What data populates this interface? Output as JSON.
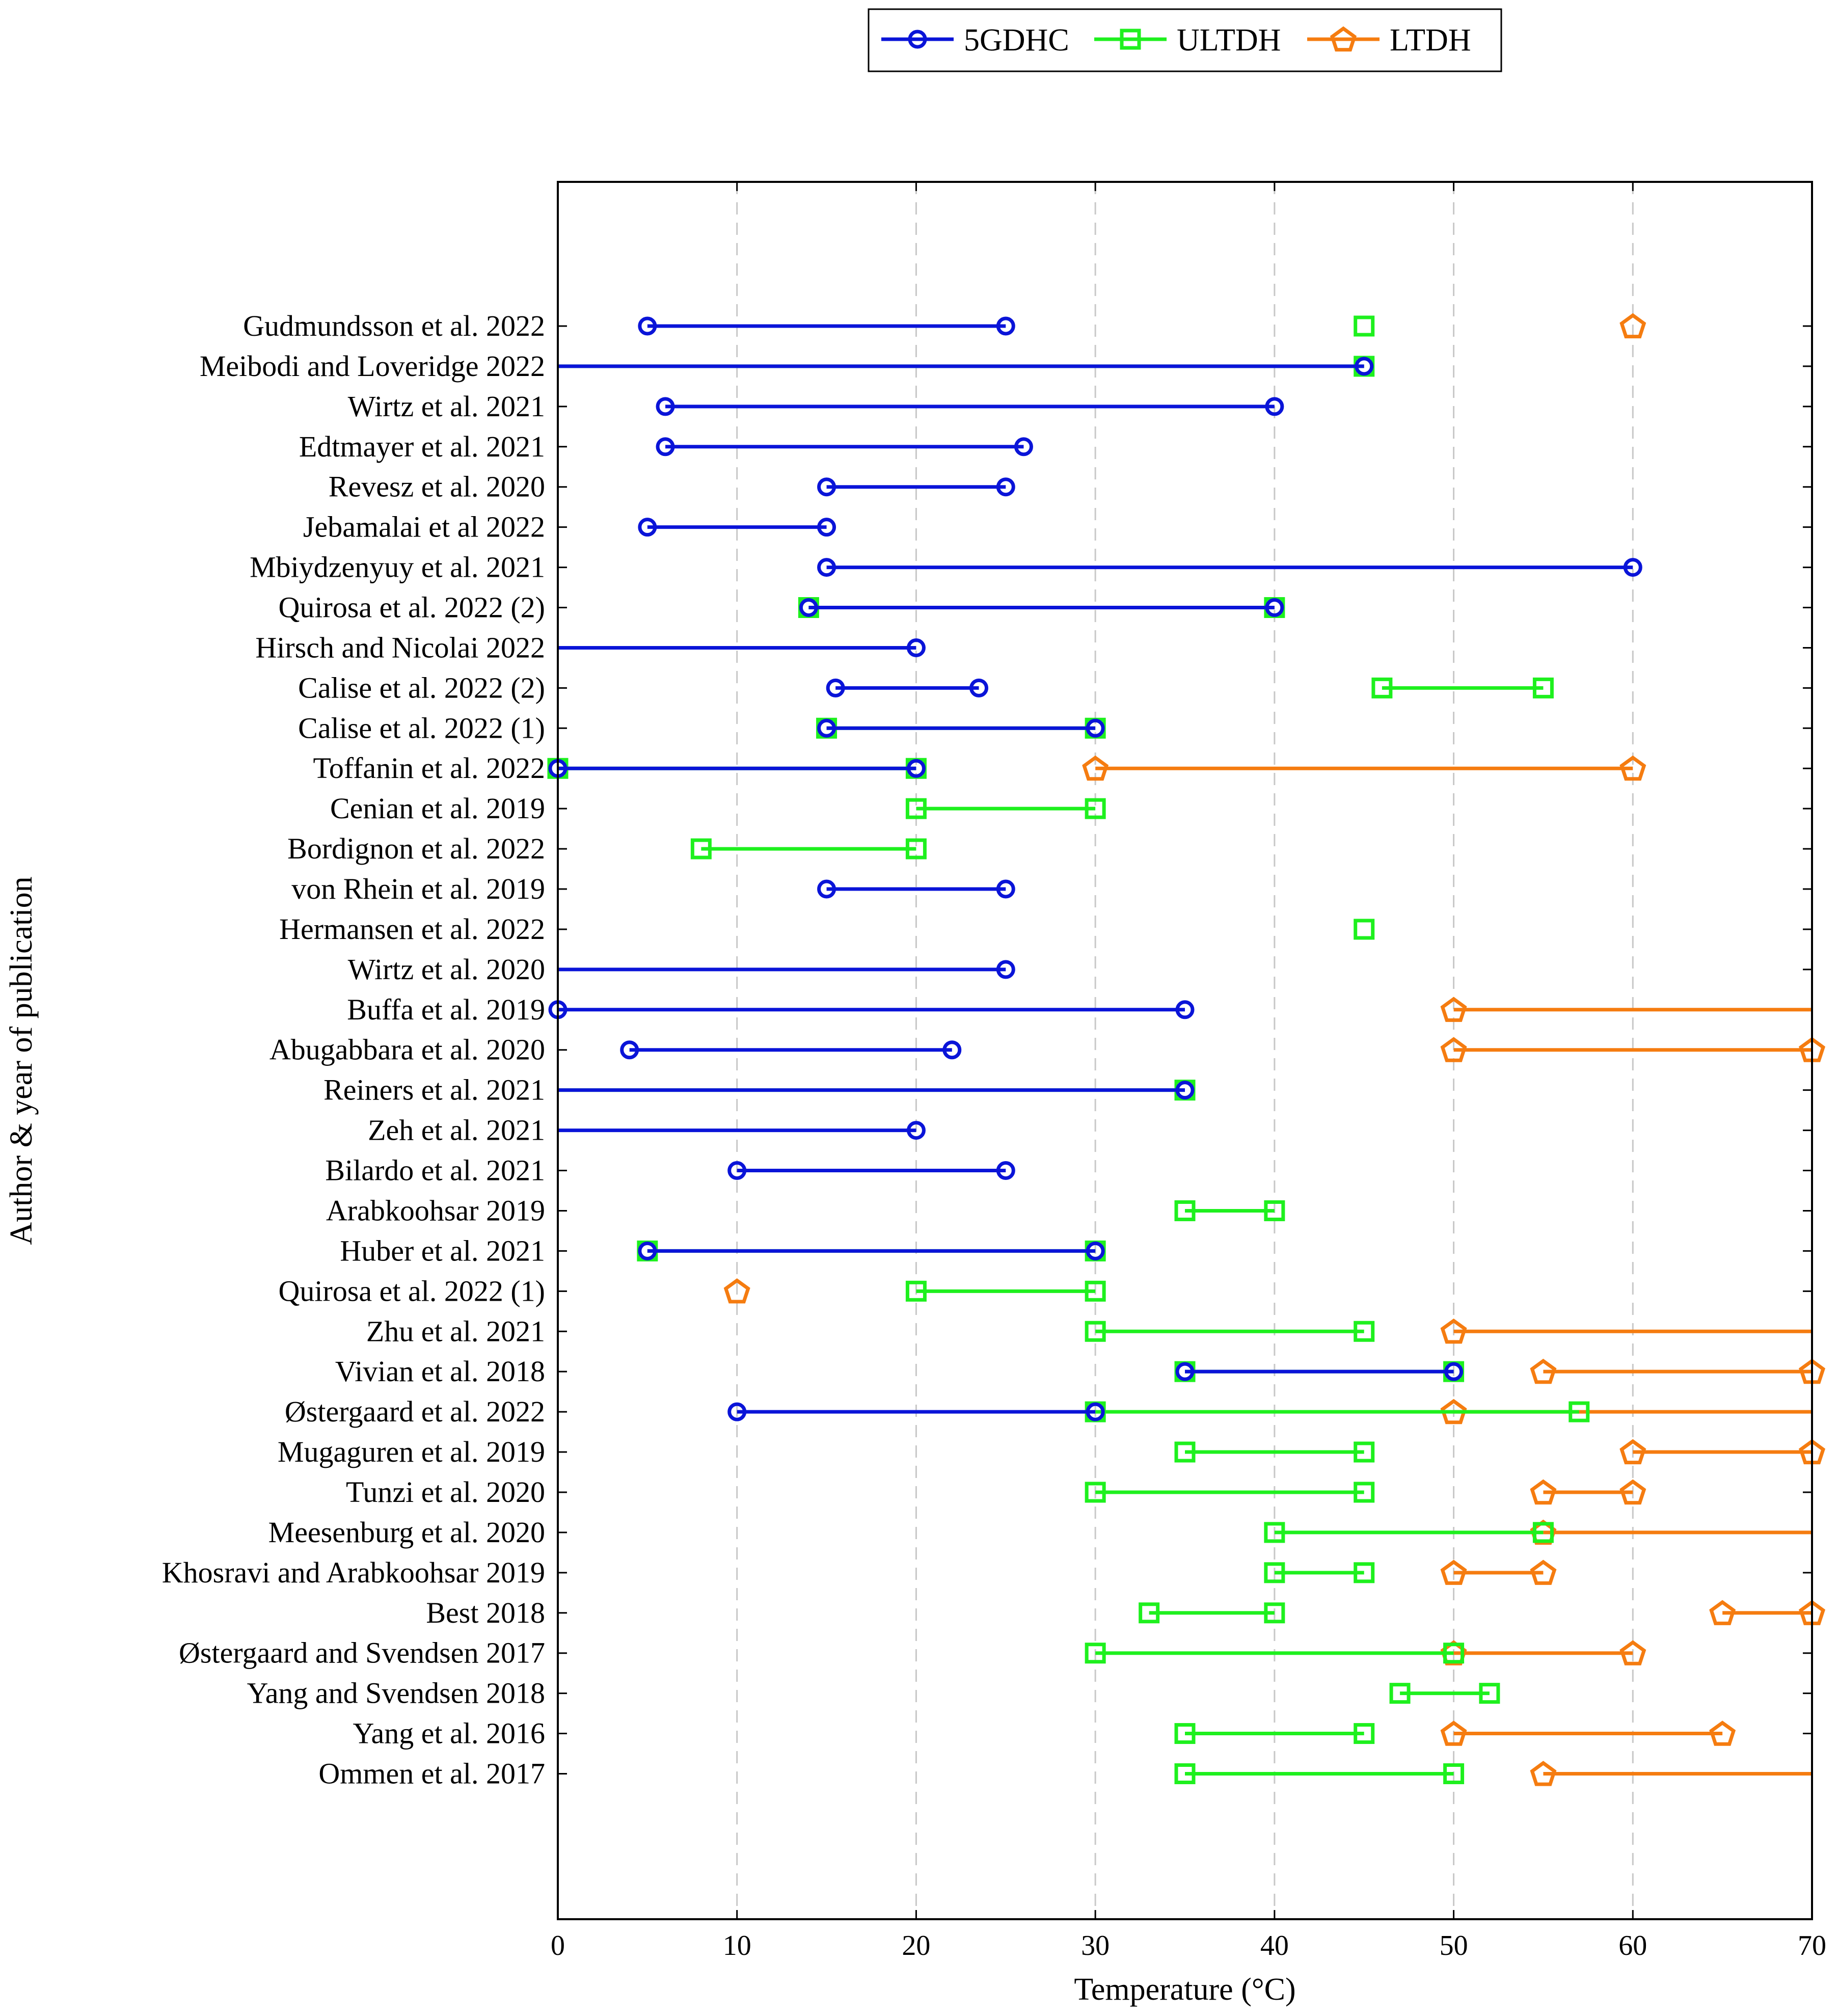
{
  "chart_data": {
    "type": "range-dumbbell",
    "title": "",
    "xlabel": "Temperature (°C)",
    "ylabel": "Author & year of publication",
    "xlim": [
      0,
      70
    ],
    "xticks": [
      0,
      10,
      20,
      30,
      40,
      50,
      60,
      70
    ],
    "grid": "vertical dashed",
    "legend_position": "top-center",
    "colors": {
      "5GDHC": "#0a14d8",
      "ULTDH": "#1ef01e",
      "LTDH": "#f57c10"
    },
    "series": [
      {
        "name": "5GDHC",
        "marker": "circle"
      },
      {
        "name": "ULTDH",
        "marker": "square"
      },
      {
        "name": "LTDH",
        "marker": "pentagon"
      }
    ],
    "categories": [
      "Gudmundsson et al. 2022",
      "Meibodi and Loveridge 2022",
      "Wirtz et al. 2021",
      "Edtmayer et al. 2021",
      "Revesz et al. 2020",
      "Jebamalai et al 2022",
      "Mbiydzenyuy et al. 2021",
      "Quirosa et al. 2022 (2)",
      "Hirsch and Nicolai 2022",
      "Calise et al. 2022 (2)",
      "Calise et al. 2022 (1)",
      "Toffanin et al. 2022",
      "Cenian et al. 2019",
      "Bordignon et al. 2022",
      "von Rhein et al. 2019",
      "Hermansen et al. 2022",
      "Wirtz et al. 2020",
      "Buffa et al. 2019",
      "Abugabbara et al. 2020",
      "Reiners et al. 2021",
      "Zeh et al. 2021",
      "Bilardo et al. 2021",
      "Arabkoohsar 2019",
      "Huber et al. 2021",
      "Quirosa et al. 2022 (1)",
      "Zhu et al. 2021",
      "Vivian et al. 2018",
      "Østergaard et al. 2022",
      "Mugaguren et al. 2019",
      "Tunzi et al. 2020",
      "Meesenburg et al. 2020",
      "Khosravi and Arabkoohsar 2019",
      "Best 2018",
      "Østergaard and Svendsen 2017",
      "Yang and Svendsen 2018",
      "Yang et al. 2016",
      "Ommen et al. 2017"
    ],
    "rows": [
      {
        "5GDHC": [
          5,
          25
        ],
        "ULTDH": [
          45
        ],
        "LTDH": [
          60
        ]
      },
      {
        "5GDHC": [
          null,
          45
        ],
        "ULTDH": [
          null,
          45
        ],
        "LTDH": null
      },
      {
        "5GDHC": [
          6,
          40
        ],
        "ULTDH": null,
        "LTDH": null
      },
      {
        "5GDHC": [
          6,
          26
        ],
        "ULTDH": null,
        "LTDH": null
      },
      {
        "5GDHC": [
          15,
          25
        ],
        "ULTDH": null,
        "LTDH": null
      },
      {
        "5GDHC": [
          5,
          15
        ],
        "ULTDH": null,
        "LTDH": null
      },
      {
        "5GDHC": [
          15,
          60
        ],
        "ULTDH": null,
        "LTDH": null
      },
      {
        "5GDHC": [
          14,
          40
        ],
        "ULTDH": [
          14,
          40
        ],
        "LTDH": null
      },
      {
        "5GDHC": [
          null,
          20
        ],
        "ULTDH": null,
        "LTDH": null
      },
      {
        "5GDHC": [
          15.5,
          23.5
        ],
        "ULTDH": [
          46,
          55
        ],
        "LTDH": null
      },
      {
        "5GDHC": [
          15,
          30
        ],
        "ULTDH": [
          15,
          30
        ],
        "LTDH": null
      },
      {
        "5GDHC": [
          0,
          20
        ],
        "ULTDH": [
          0,
          20
        ],
        "LTDH": [
          30,
          60
        ]
      },
      {
        "5GDHC": null,
        "ULTDH": [
          20,
          30
        ],
        "LTDH": null
      },
      {
        "5GDHC": null,
        "ULTDH": [
          8,
          20
        ],
        "LTDH": null
      },
      {
        "5GDHC": [
          15,
          25
        ],
        "ULTDH": null,
        "LTDH": null
      },
      {
        "5GDHC": null,
        "ULTDH": [
          45
        ],
        "LTDH": null
      },
      {
        "5GDHC": [
          null,
          25
        ],
        "ULTDH": null,
        "LTDH": null
      },
      {
        "5GDHC": [
          0,
          35
        ],
        "ULTDH": null,
        "LTDH": [
          50,
          null
        ]
      },
      {
        "5GDHC": [
          4,
          22
        ],
        "ULTDH": null,
        "LTDH": [
          50,
          70
        ]
      },
      {
        "5GDHC": [
          null,
          35
        ],
        "ULTDH": [
          null,
          35
        ],
        "LTDH": null
      },
      {
        "5GDHC": [
          null,
          20
        ],
        "ULTDH": null,
        "LTDH": null
      },
      {
        "5GDHC": [
          10,
          25
        ],
        "ULTDH": null,
        "LTDH": null
      },
      {
        "5GDHC": null,
        "ULTDH": [
          35,
          40
        ],
        "LTDH": null
      },
      {
        "5GDHC": [
          5,
          30
        ],
        "ULTDH": [
          5,
          30
        ],
        "LTDH": null
      },
      {
        "5GDHC": null,
        "ULTDH": [
          20,
          30
        ],
        "LTDH": [
          10
        ]
      },
      {
        "5GDHC": null,
        "ULTDH": [
          30,
          45
        ],
        "LTDH": [
          50,
          null
        ]
      },
      {
        "5GDHC": [
          35,
          50
        ],
        "ULTDH": [
          35,
          50
        ],
        "LTDH": [
          55,
          70
        ]
      },
      {
        "5GDHC": [
          10,
          30
        ],
        "ULTDH": [
          30,
          57
        ],
        "LTDH": [
          50,
          null
        ]
      },
      {
        "5GDHC": null,
        "ULTDH": [
          35,
          45
        ],
        "LTDH": [
          60,
          70
        ]
      },
      {
        "5GDHC": null,
        "ULTDH": [
          30,
          45
        ],
        "LTDH": [
          55,
          60
        ]
      },
      {
        "5GDHC": null,
        "ULTDH": [
          40,
          55
        ],
        "LTDH": [
          55,
          null
        ]
      },
      {
        "5GDHC": null,
        "ULTDH": [
          40,
          45
        ],
        "LTDH": [
          50,
          55
        ]
      },
      {
        "5GDHC": null,
        "ULTDH": [
          33,
          40
        ],
        "LTDH": [
          65,
          70
        ]
      },
      {
        "5GDHC": null,
        "ULTDH": [
          30,
          50
        ],
        "LTDH": [
          50,
          60
        ]
      },
      {
        "5GDHC": null,
        "ULTDH": [
          47,
          52
        ],
        "LTDH": null
      },
      {
        "5GDHC": null,
        "ULTDH": [
          35,
          45
        ],
        "LTDH": [
          50,
          65
        ]
      },
      {
        "5GDHC": null,
        "ULTDH": [
          35,
          50
        ],
        "LTDH": [
          55,
          null
        ]
      }
    ]
  }
}
